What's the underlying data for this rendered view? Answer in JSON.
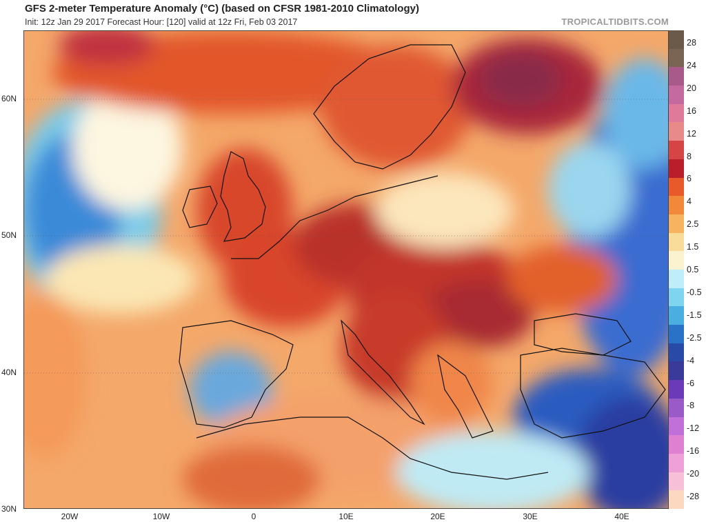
{
  "header": {
    "title": "GFS 2-meter Temperature Anomaly (°C) (based on CFSR 1981-2010 Climatology)",
    "subtitle": "Init: 12z Jan 29 2017   Forecast Hour: [120]   valid at 12z Fri, Feb 03 2017",
    "brand": "TROPICALTIDBITS.COM"
  },
  "map": {
    "projection": "equirectangular",
    "lon_range": [
      -25,
      45
    ],
    "lat_range": [
      30,
      65
    ],
    "lat_labels": [
      "60N",
      "50N",
      "40N",
      "30N"
    ],
    "lat_values": [
      60,
      50,
      40,
      30
    ],
    "lon_labels": [
      "20W",
      "10W",
      "0",
      "10E",
      "20E",
      "30E",
      "40E"
    ],
    "lon_values": [
      -20,
      -10,
      0,
      10,
      20,
      30,
      40
    ],
    "regions": {
      "atlantic_west": "cold",
      "western_europe": "warm",
      "central_europe": "very warm",
      "scandinavia_north": "very warm",
      "iberia_interior": "cold",
      "turkey_middle_east": "cold",
      "russia_east": "cold"
    }
  },
  "colorbar": {
    "labels": [
      "28",
      "24",
      "20",
      "16",
      "12",
      "8",
      "6",
      "4",
      "2.5",
      "1.5",
      "0.5",
      "-0.5",
      "-1.5",
      "-2.5",
      "-4",
      "-6",
      "-8",
      "-12",
      "-16",
      "-20",
      "-28"
    ],
    "colors": [
      "#6b5a4a",
      "#7a6555",
      "#a85a8a",
      "#c46aa0",
      "#e07a9a",
      "#e88a8a",
      "#d64545",
      "#b81f2a",
      "#e85a2a",
      "#f08a3a",
      "#f7b460",
      "#fadc9a",
      "#fbf2d0",
      "#bfeef8",
      "#7fd4f0",
      "#4aaee0",
      "#2a72c8",
      "#2a4aa8",
      "#3a3a9a",
      "#6a3ab8",
      "#9a5ac8",
      "#c070d8",
      "#e080d0",
      "#f0a0d8",
      "#f8c0d8",
      "#fcd8c0"
    ]
  }
}
